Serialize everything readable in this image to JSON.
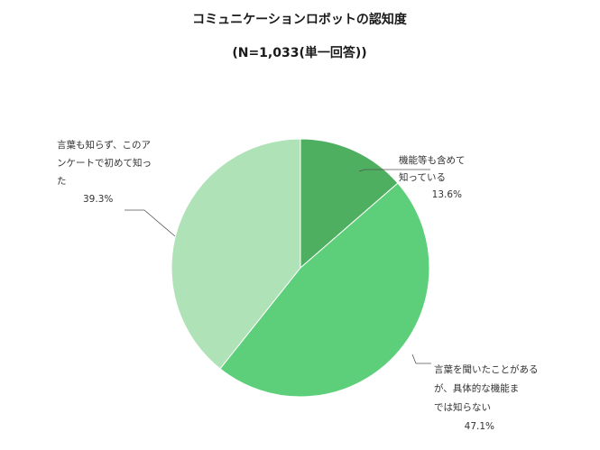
{
  "chart_data": {
    "type": "pie",
    "title": "コミュニケーションロボットの認知度",
    "subtitle": "(N=1,033(単一回答))",
    "slices": [
      {
        "label_lines": [
          "機能等も含めて",
          "知っている"
        ],
        "value": 13.6,
        "value_label": "13.6%",
        "color": "#4faf61"
      },
      {
        "label_lines": [
          "言葉を聞いたことがある",
          "が、具体的な機能ま",
          "では知らない"
        ],
        "value": 47.1,
        "value_label": "47.1%",
        "color": "#5dcf7a"
      },
      {
        "label_lines": [
          "言葉も知らず、このア",
          "ンケートで初めて知っ",
          "た"
        ],
        "value": 39.3,
        "value_label": "39.3%",
        "color": "#b0e2b8"
      }
    ]
  }
}
